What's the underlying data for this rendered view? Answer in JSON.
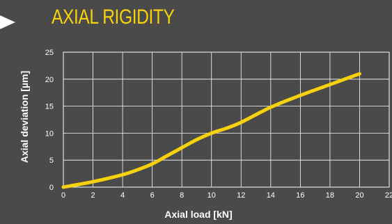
{
  "header": {
    "title": "AXIAL RIGIDITY"
  },
  "colors": {
    "background": "#4a4a4a",
    "accent": "#f7d20b",
    "grid": "#ffffff",
    "text": "#ffffff"
  },
  "chart_data": {
    "type": "line",
    "title": "AXIAL RIGIDITY",
    "xlabel": "Axial load [kN]",
    "ylabel": "Axial deviation [µm]",
    "xlim": [
      0,
      22
    ],
    "ylim": [
      0,
      25
    ],
    "xticks": [
      0,
      2,
      4,
      6,
      8,
      10,
      12,
      14,
      16,
      18,
      20,
      22
    ],
    "yticks": [
      0,
      5,
      10,
      15,
      20,
      25
    ],
    "grid": true,
    "legend": "none",
    "series": [
      {
        "color": "#f7d20b",
        "x": [
          0,
          2,
          4,
          5,
          6,
          7,
          8,
          9,
          10,
          11,
          12,
          14,
          16,
          18,
          20
        ],
        "y": [
          0,
          1,
          2.3,
          3.2,
          4.3,
          5.8,
          7.3,
          8.8,
          10,
          10.9,
          12,
          14.8,
          17,
          19,
          21
        ]
      }
    ]
  }
}
